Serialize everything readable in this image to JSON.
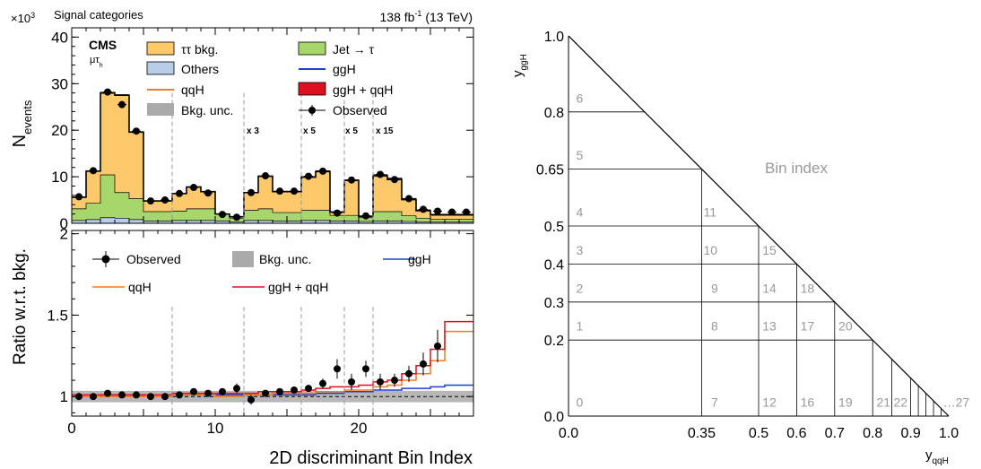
{
  "header": {
    "exponent_label": "×10",
    "exponent_power": "3",
    "category": "Signal categories",
    "lumi_main": "138 fb",
    "lumi_sup": "-1",
    "lumi_energy": " (13 TeV)"
  },
  "cms_label": "CMS",
  "channel_main": "μτ",
  "channel_sub": "h",
  "colors": {
    "tt_bkg": "#fdc96b",
    "jet_tau": "#a7d66b",
    "others": "#b9cde6",
    "ggh": "#1f3fcc",
    "qqh": "#f07d21",
    "ggh_qqh": "#dd1022",
    "unc": "#aaaaaa"
  },
  "legend_top": [
    {
      "label": "ττ bkg.",
      "style": "box",
      "color": "#fdc96b"
    },
    {
      "label": "Jet → τ",
      "style": "box",
      "color": "#a7d66b"
    },
    {
      "label": "Others",
      "style": "box",
      "color": "#b9cde6"
    },
    {
      "label": "ggH",
      "style": "line",
      "color": "#1f3fcc"
    },
    {
      "label": "qqH",
      "style": "line",
      "color": "#f07d21"
    },
    {
      "label": "ggH + qqH",
      "style": "box",
      "color": "#dd1022"
    },
    {
      "label": "Bkg. unc.",
      "style": "fill",
      "color": "#aaaaaa"
    },
    {
      "label": "Observed",
      "style": "marker",
      "color": "#000000"
    }
  ],
  "legend_bottom": [
    {
      "label": "Observed",
      "style": "marker",
      "color": "#000000"
    },
    {
      "label": "Bkg. unc.",
      "style": "fill",
      "color": "#aaaaaa"
    },
    {
      "label": "ggH",
      "style": "line",
      "color": "#1f3fcc"
    },
    {
      "label": "qqH",
      "style": "line",
      "color": "#f07d21"
    },
    {
      "label": "ggH + qqH",
      "style": "line",
      "color": "#dd1022"
    }
  ],
  "scale_labels": [
    "x 3",
    "x 5",
    "x 5",
    "x 15"
  ],
  "chart_data": [
    {
      "type": "bar",
      "panel": "top",
      "stacked": true,
      "ylabel_main": "N",
      "ylabel_sub": "events",
      "xlim": [
        0,
        28
      ],
      "ylim": [
        0,
        42
      ],
      "y_ticks": [
        0,
        10,
        20,
        30,
        40
      ],
      "y_tick_labels": [
        "0",
        "10",
        "20",
        "30",
        "40"
      ],
      "bins": [
        0,
        1,
        2,
        3,
        4,
        5,
        6,
        7,
        8,
        9,
        10,
        11,
        12,
        13,
        14,
        15,
        16,
        17,
        18,
        19,
        20,
        21,
        22,
        23,
        24,
        25,
        26,
        27
      ],
      "dashed_lines_at": [
        7,
        12,
        16,
        19,
        21
      ],
      "series": [
        {
          "name": "Others",
          "values": [
            0.6,
            0.8,
            1.2,
            1.1,
            0.8,
            0.5,
            0.5,
            0.6,
            0.6,
            0.6,
            0.5,
            0.3,
            0.6,
            0.6,
            0.5,
            0.5,
            0.6,
            0.6,
            0.5,
            0.5,
            0.4,
            0.5,
            0.5,
            0.4,
            0.3,
            0.3,
            0.3,
            0.3
          ]
        },
        {
          "name": "Jet → τ",
          "values": [
            2.5,
            3.5,
            9.2,
            5.5,
            4.5,
            2.0,
            2.0,
            2.0,
            2.5,
            2.5,
            1.5,
            0.8,
            2.2,
            2.5,
            1.8,
            1.8,
            2.2,
            2.2,
            1.2,
            1.2,
            0.8,
            2.0,
            2.0,
            1.2,
            0.8,
            0.6,
            0.6,
            0.6
          ]
        },
        {
          "name": "ττ bkg.",
          "values": [
            2.5,
            6.9,
            17.6,
            20.9,
            14.3,
            2.3,
            2.3,
            3.8,
            4.7,
            3.7,
            0.0,
            0.3,
            3.8,
            7.0,
            4.5,
            4.5,
            7.1,
            8.3,
            0.7,
            7.5,
            0.3,
            7.7,
            6.9,
            3.5,
            1.6,
            0.9,
            0.9,
            0.9
          ]
        },
        {
          "name": "ggH + qqH",
          "values": [
            0.05,
            0.08,
            0.15,
            0.15,
            0.1,
            0.02,
            0.02,
            0.05,
            0.05,
            0.05,
            0.02,
            0.02,
            0.05,
            0.1,
            0.1,
            0.1,
            0.15,
            0.2,
            0.1,
            0.15,
            0.1,
            0.25,
            0.3,
            0.25,
            0.2,
            0.15,
            0.15,
            0.15
          ]
        }
      ],
      "observed": [
        5.7,
        11.3,
        28.2,
        25.5,
        19.8,
        4.8,
        5.0,
        6.4,
        7.7,
        6.5,
        1.9,
        1.3,
        6.6,
        10.2,
        6.9,
        6.9,
        10.1,
        11.2,
        2.2,
        9.3,
        1.6,
        10.5,
        9.4,
        5.3,
        3.0,
        2.6,
        2.4,
        2.4
      ]
    },
    {
      "type": "line",
      "panel": "bottom",
      "ylabel": "Ratio w.r.t. bkg.",
      "xlabel": "2D discriminant Bin Index",
      "xlim": [
        0,
        28
      ],
      "ylim": [
        0.88,
        2.02
      ],
      "x_ticks": [
        0,
        10,
        20
      ],
      "x_tick_labels": [
        "0",
        "10",
        "20"
      ],
      "y_ticks": [
        1,
        1.5,
        2
      ],
      "y_tick_labels": [
        "1",
        "1.5",
        "2"
      ],
      "dashed_lines_at": [
        7,
        12,
        16,
        19,
        21
      ],
      "series": [
        {
          "name": "ggH",
          "values": [
            1.0,
            1.0,
            1.01,
            1.01,
            1.01,
            1.0,
            1.0,
            1.01,
            1.01,
            1.01,
            1.01,
            1.01,
            1.01,
            1.01,
            1.01,
            1.01,
            1.01,
            1.02,
            1.02,
            1.03,
            1.03,
            1.04,
            1.04,
            1.05,
            1.05,
            1.06,
            1.07,
            1.07
          ]
        },
        {
          "name": "qqH",
          "values": [
            1.0,
            1.0,
            1.0,
            1.0,
            1.0,
            1.0,
            1.0,
            1.01,
            1.01,
            1.01,
            1.0,
            1.0,
            1.01,
            1.01,
            1.02,
            1.02,
            1.02,
            1.03,
            1.03,
            1.04,
            1.04,
            1.06,
            1.07,
            1.1,
            1.14,
            1.22,
            1.4,
            1.4
          ]
        },
        {
          "name": "ggH + qqH",
          "values": [
            1.01,
            1.01,
            1.01,
            1.01,
            1.01,
            1.01,
            1.01,
            1.02,
            1.02,
            1.02,
            1.02,
            1.02,
            1.02,
            1.03,
            1.03,
            1.03,
            1.04,
            1.05,
            1.06,
            1.06,
            1.07,
            1.09,
            1.1,
            1.14,
            1.19,
            1.29,
            1.46,
            1.46
          ]
        }
      ],
      "unc_band": [
        {
          "x0": 0,
          "x1": 28,
          "lo": 0.965,
          "hi": 1.035
        }
      ],
      "observed": [
        {
          "x": 0.5,
          "y": 1.0,
          "err": 0.01
        },
        {
          "x": 1.5,
          "y": 1.0,
          "err": 0.01
        },
        {
          "x": 2.5,
          "y": 1.02,
          "err": 0.01
        },
        {
          "x": 3.5,
          "y": 1.01,
          "err": 0.01
        },
        {
          "x": 4.5,
          "y": 1.01,
          "err": 0.01
        },
        {
          "x": 5.5,
          "y": 1.0,
          "err": 0.02
        },
        {
          "x": 6.5,
          "y": 1.0,
          "err": 0.02
        },
        {
          "x": 7.5,
          "y": 1.01,
          "err": 0.02
        },
        {
          "x": 8.5,
          "y": 1.03,
          "err": 0.02
        },
        {
          "x": 9.5,
          "y": 1.02,
          "err": 0.02
        },
        {
          "x": 10.5,
          "y": 1.03,
          "err": 0.02
        },
        {
          "x": 11.5,
          "y": 1.05,
          "err": 0.03
        },
        {
          "x": 12.5,
          "y": 0.98,
          "err": 0.03
        },
        {
          "x": 13.5,
          "y": 1.02,
          "err": 0.02
        },
        {
          "x": 14.5,
          "y": 1.03,
          "err": 0.02
        },
        {
          "x": 15.5,
          "y": 1.04,
          "err": 0.02
        },
        {
          "x": 16.5,
          "y": 1.05,
          "err": 0.02
        },
        {
          "x": 17.5,
          "y": 1.08,
          "err": 0.03
        },
        {
          "x": 18.5,
          "y": 1.17,
          "err": 0.06
        },
        {
          "x": 19.5,
          "y": 1.09,
          "err": 0.05
        },
        {
          "x": 20.5,
          "y": 1.17,
          "err": 0.05
        },
        {
          "x": 21.5,
          "y": 1.09,
          "err": 0.05
        },
        {
          "x": 22.5,
          "y": 1.1,
          "err": 0.04
        },
        {
          "x": 23.5,
          "y": 1.14,
          "err": 0.05
        },
        {
          "x": 24.5,
          "y": 1.2,
          "err": 0.07
        },
        {
          "x": 25.5,
          "y": 1.31,
          "err": 0.1
        }
      ]
    },
    {
      "type": "diagram",
      "panel": "right",
      "xlabel_main": "y",
      "xlabel_sub": "qqH",
      "ylabel_main": "y",
      "ylabel_sub": "ggH",
      "title": "Bin index",
      "x_tick_values": [
        0,
        0.35,
        0.5,
        0.6,
        0.7,
        0.8,
        0.9,
        1.0
      ],
      "x_tick_labels": [
        "0.0",
        "0.35",
        "0.5",
        "0.6",
        "0.7",
        "0.8",
        "0.9",
        "1.0"
      ],
      "y_tick_values": [
        0,
        0.2,
        0.3,
        0.4,
        0.5,
        0.65,
        0.8,
        1.0
      ],
      "y_tick_labels": [
        "0.0",
        "0.2",
        "0.3",
        "0.4",
        "0.5",
        "0.65",
        "0.8",
        "1.0"
      ],
      "h_edges": [
        0.2,
        0.3,
        0.4,
        0.5,
        0.65,
        0.8
      ],
      "v_edges": [
        0.35,
        0.5,
        0.6,
        0.7,
        0.8,
        0.85,
        0.9,
        0.92,
        0.94,
        0.96,
        0.98
      ],
      "bin_labels": [
        {
          "text": "0",
          "x": 0.02,
          "y": 0.02
        },
        {
          "text": "1",
          "x": 0.02,
          "y": 0.22
        },
        {
          "text": "2",
          "x": 0.02,
          "y": 0.32
        },
        {
          "text": "3",
          "x": 0.02,
          "y": 0.42
        },
        {
          "text": "4",
          "x": 0.02,
          "y": 0.52
        },
        {
          "text": "5",
          "x": 0.02,
          "y": 0.67
        },
        {
          "text": "6",
          "x": 0.02,
          "y": 0.82
        },
        {
          "text": "7",
          "x": 0.375,
          "y": 0.02
        },
        {
          "text": "8",
          "x": 0.375,
          "y": 0.22
        },
        {
          "text": "9",
          "x": 0.375,
          "y": 0.32
        },
        {
          "text": "10",
          "x": 0.355,
          "y": 0.42
        },
        {
          "text": "11",
          "x": 0.355,
          "y": 0.52
        },
        {
          "text": "12",
          "x": 0.51,
          "y": 0.02
        },
        {
          "text": "13",
          "x": 0.51,
          "y": 0.22
        },
        {
          "text": "14",
          "x": 0.51,
          "y": 0.32
        },
        {
          "text": "15",
          "x": 0.51,
          "y": 0.42
        },
        {
          "text": "16",
          "x": 0.61,
          "y": 0.02
        },
        {
          "text": "17",
          "x": 0.61,
          "y": 0.22
        },
        {
          "text": "18",
          "x": 0.61,
          "y": 0.32
        },
        {
          "text": "19",
          "x": 0.71,
          "y": 0.02
        },
        {
          "text": "20",
          "x": 0.71,
          "y": 0.22
        },
        {
          "text": "21",
          "x": 0.81,
          "y": 0.02
        },
        {
          "text": "22",
          "x": 0.855,
          "y": 0.02
        },
        {
          "text": "…27",
          "x": 0.985,
          "y": 0.02
        }
      ]
    }
  ]
}
